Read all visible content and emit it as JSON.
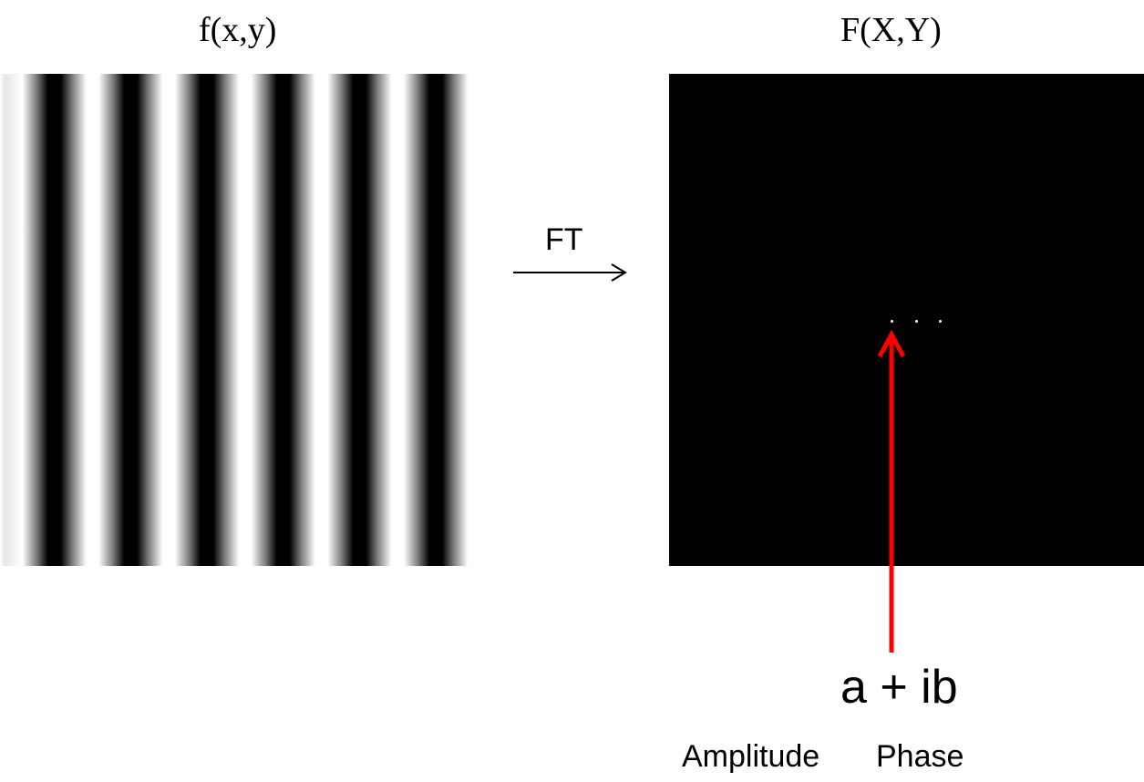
{
  "left_panel": {
    "title": "f(x,y)",
    "image": "vertical-sinusoidal-grating",
    "stripe_count": 6
  },
  "transform": {
    "label": "FT"
  },
  "right_panel": {
    "title": "F(X,Y)",
    "image": "fourier-spectrum-three-dots",
    "background_color": "#000000",
    "dot_color": "#ffffff"
  },
  "annotation": {
    "pointer_color": "#ff0000",
    "complex_value": "a + ib",
    "amplitude_label": "Amplitude",
    "phase_label": "Phase"
  }
}
